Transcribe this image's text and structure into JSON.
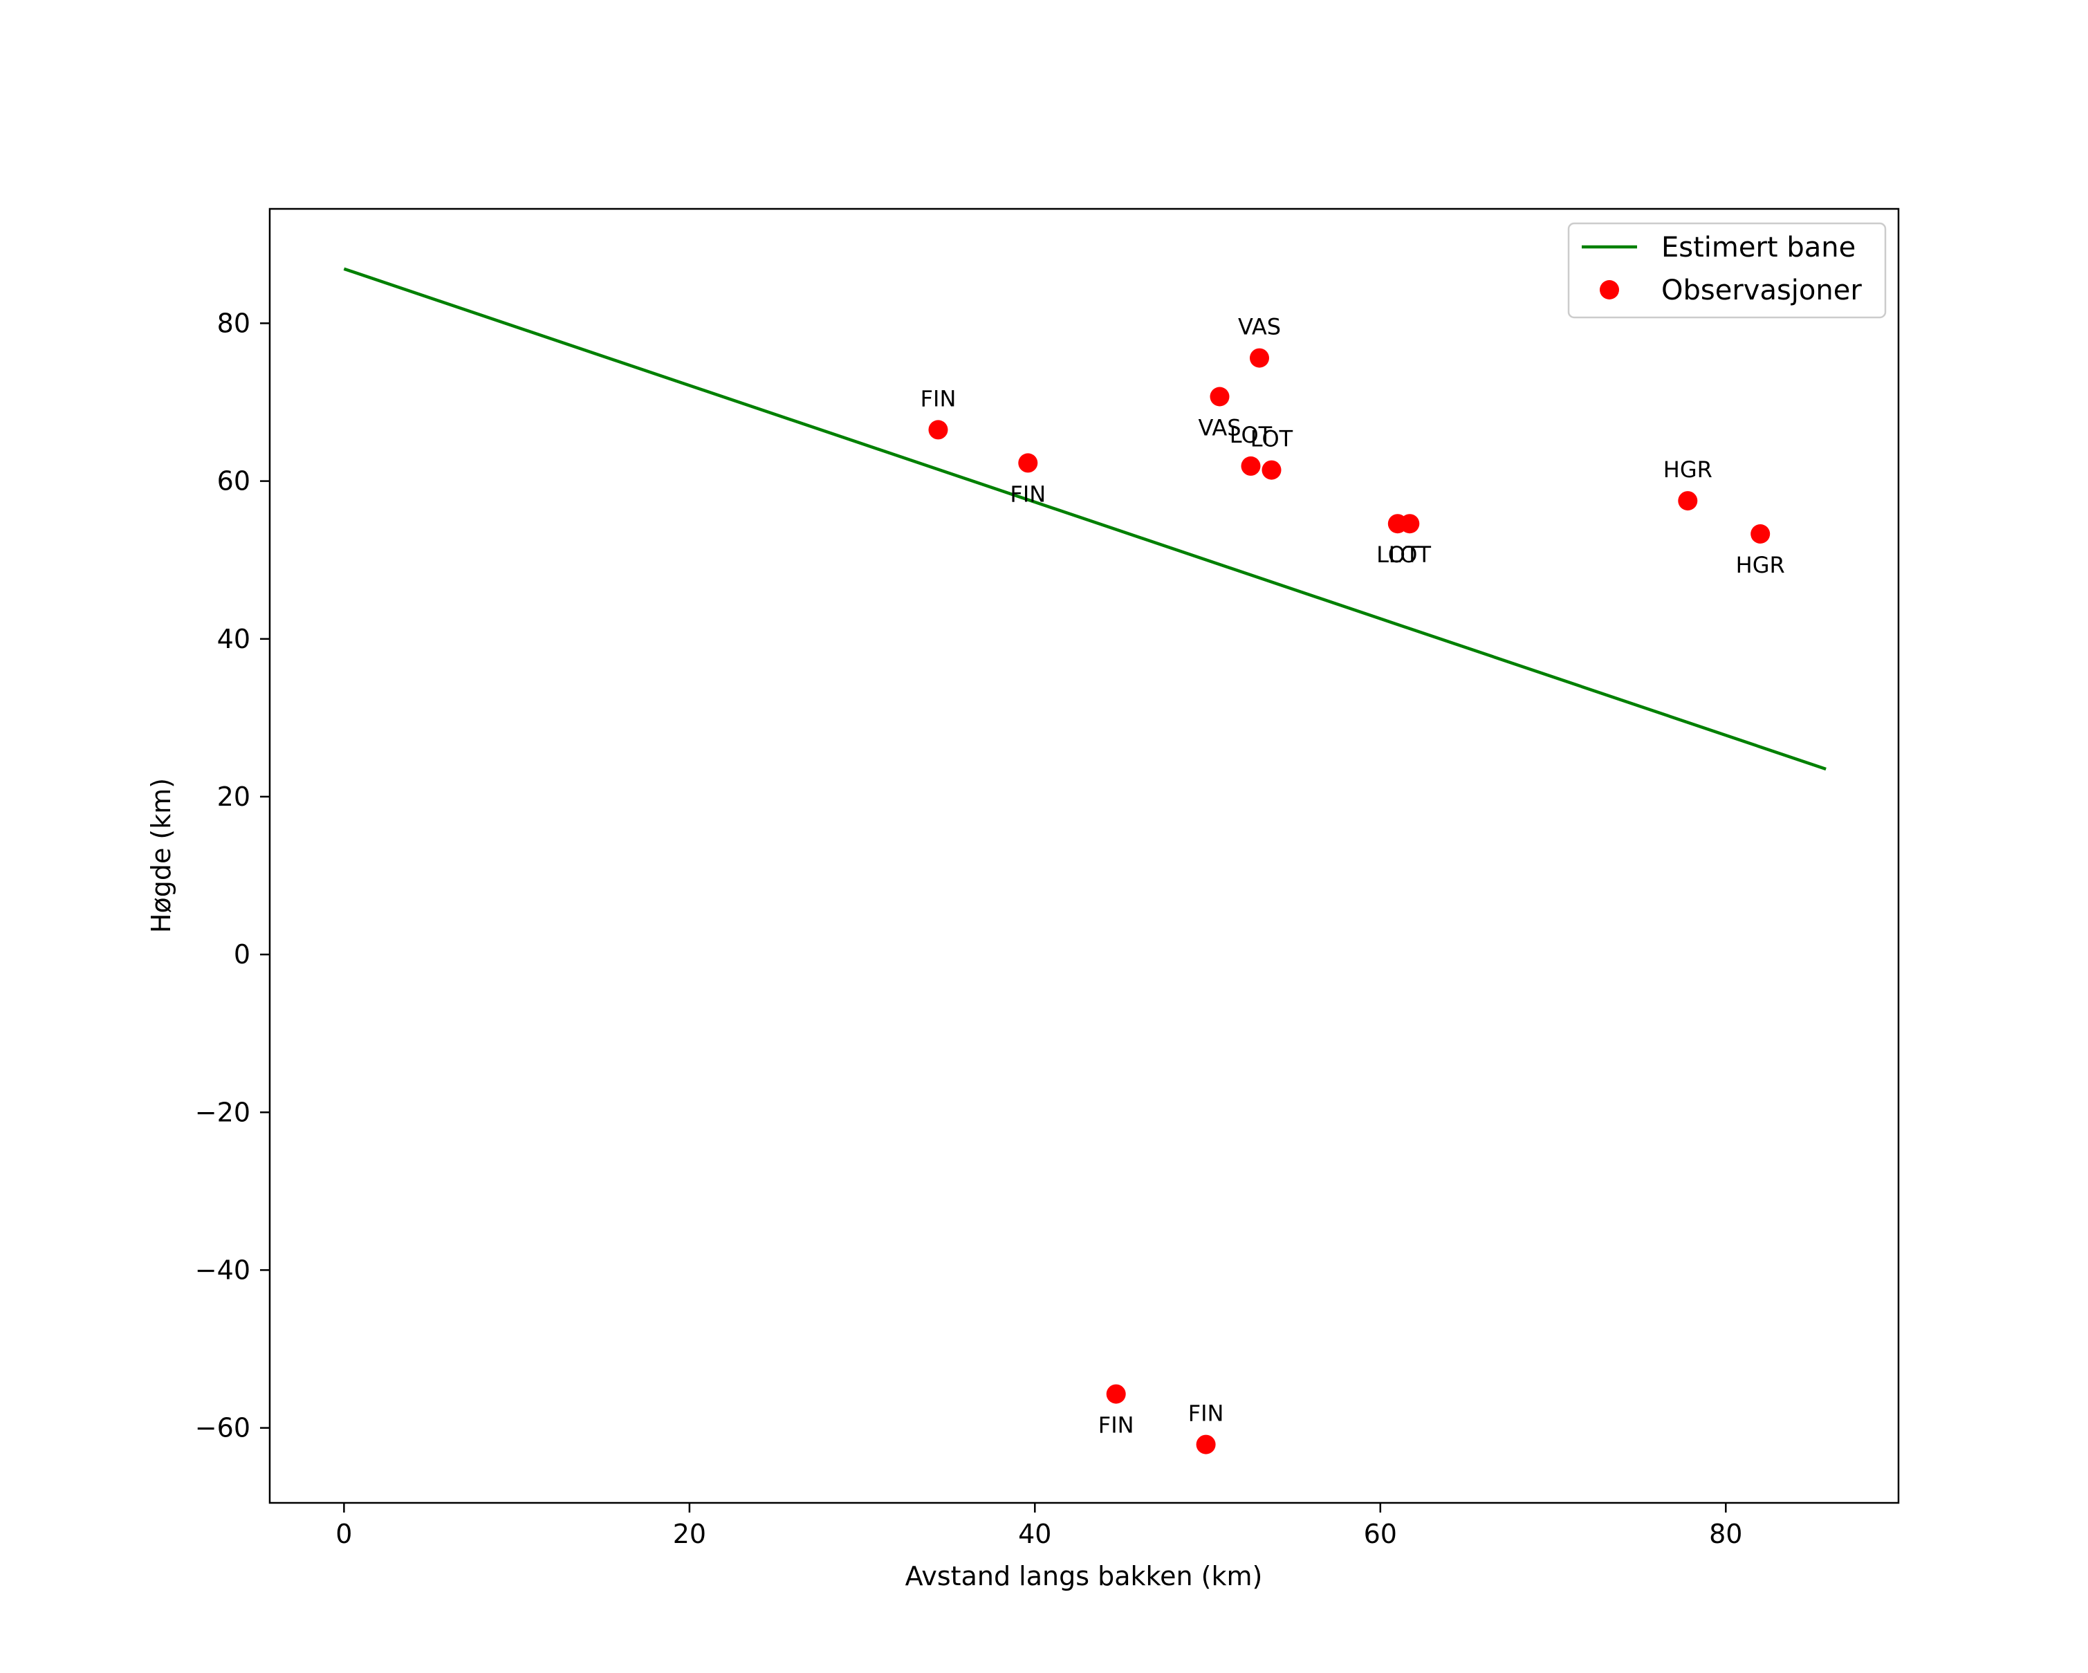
{
  "chart_data": {
    "type": "line",
    "title": "",
    "xlabel": "Avstand langs bakken (km)",
    "ylabel": "Høgde (km)",
    "xlim": [
      -4.3,
      90
    ],
    "ylim": [
      -69.5,
      94.5
    ],
    "xticks": [
      0,
      20,
      40,
      60,
      80
    ],
    "xtick_labels": [
      "0",
      "20",
      "40",
      "60",
      "80"
    ],
    "yticks": [
      -60,
      -40,
      -20,
      0,
      20,
      40,
      60,
      80
    ],
    "ytick_labels": [
      "−60",
      "−40",
      "−20",
      "0",
      "20",
      "40",
      "60",
      "80"
    ],
    "grid": false,
    "legend_position": "top-right",
    "colors": {
      "line": "#008000",
      "points": "#ff0000",
      "axes": "#000000"
    },
    "series": [
      {
        "name": "Estimert bane",
        "kind": "line",
        "x": [
          0,
          85.8
        ],
        "y": [
          86.9,
          23.5
        ]
      },
      {
        "name": "Observasjoner",
        "kind": "scatter",
        "points": [
          {
            "label": "FIN",
            "x": 34.4,
            "y": 66.5,
            "label_side": "above"
          },
          {
            "label": "FIN",
            "x": 39.6,
            "y": 62.3,
            "label_side": "below"
          },
          {
            "label": "VAS",
            "x": 53.0,
            "y": 75.6,
            "label_side": "above"
          },
          {
            "label": "VAS",
            "x": 50.7,
            "y": 70.7,
            "label_side": "below"
          },
          {
            "label": "LOT",
            "x": 52.5,
            "y": 61.9,
            "label_side": "above"
          },
          {
            "label": "LOT",
            "x": 53.7,
            "y": 61.4,
            "label_side": "above"
          },
          {
            "label": "LOT",
            "x": 61.0,
            "y": 54.6,
            "label_side": "below"
          },
          {
            "label": "LOT",
            "x": 61.7,
            "y": 54.6,
            "label_side": "below"
          },
          {
            "label": "HGR",
            "x": 77.8,
            "y": 57.5,
            "label_side": "above"
          },
          {
            "label": "HGR",
            "x": 82.0,
            "y": 53.3,
            "label_side": "below"
          },
          {
            "label": "FIN",
            "x": 44.7,
            "y": -55.7,
            "label_side": "below"
          },
          {
            "label": "FIN",
            "x": 49.9,
            "y": -62.1,
            "label_side": "above"
          }
        ]
      }
    ]
  }
}
